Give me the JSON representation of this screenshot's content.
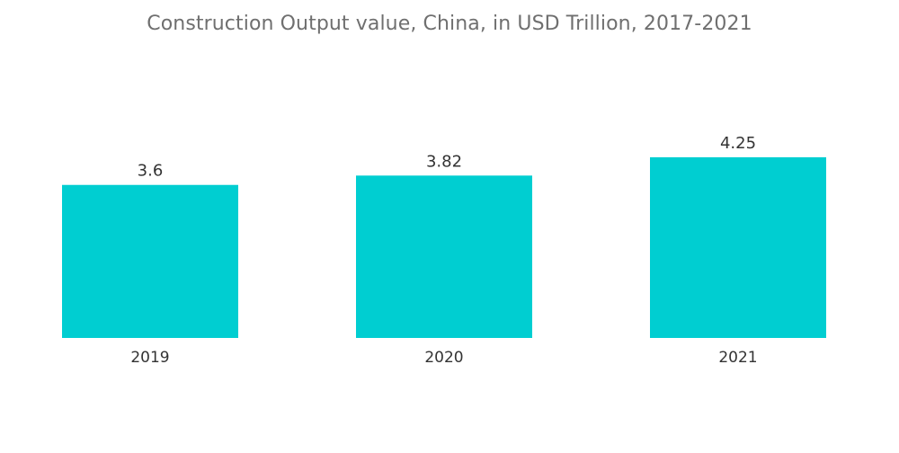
{
  "chart_data": {
    "type": "bar",
    "title": "Construction Output value, China, in USD Trillion, 2017-2021",
    "categories": [
      "2019",
      "2020",
      "2021"
    ],
    "values": [
      3.6,
      3.82,
      4.25
    ],
    "data_labels": [
      "3.6",
      "3.82",
      "4.25"
    ],
    "xlabel": "",
    "ylabel": "",
    "ylim": [
      0,
      4.25
    ],
    "grid": false,
    "legend": "none",
    "bar_color": "#00ced1"
  }
}
